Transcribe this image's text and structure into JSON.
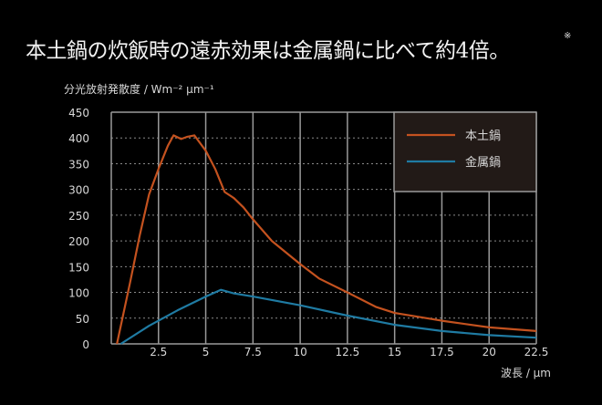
{
  "title": "本土鍋の炊飯時の遠赤効果は金属鍋に比べて約4倍。",
  "title_note": "※",
  "chart_data": {
    "type": "line",
    "title": "本土鍋の炊飯時の遠赤効果は金属鍋に比べて約4倍。",
    "ylabel": "分光放射発散度 / Wm⁻² μm⁻¹",
    "xlabel": "波長 / μm",
    "xlim": [
      0,
      22.5
    ],
    "ylim": [
      0,
      450
    ],
    "xticks": [
      2.5,
      5,
      7.5,
      10,
      12.5,
      15,
      17.5,
      20,
      22.5
    ],
    "xtick_labels": [
      "2.5",
      "5",
      "7.5",
      "10",
      "12.5",
      "15",
      "17.5",
      "20",
      "22.5"
    ],
    "yticks": [
      0,
      50,
      100,
      150,
      200,
      250,
      300,
      350,
      400,
      450
    ],
    "ytick_labels": [
      "0",
      "50",
      "100",
      "150",
      "200",
      "250",
      "300",
      "350",
      "400",
      "450"
    ],
    "grid": true,
    "legend": "top-right",
    "series": [
      {
        "name": "本土鍋",
        "color": "#c4521f",
        "x": [
          0.3,
          1,
          1.5,
          2,
          2.5,
          3,
          3.3,
          3.7,
          4,
          4.4,
          5,
          5.5,
          6,
          6.5,
          7,
          7.5,
          8.5,
          10,
          11,
          12.5,
          14,
          15,
          17.5,
          20,
          22.5
        ],
        "y": [
          0,
          120,
          210,
          290,
          340,
          385,
          405,
          398,
          402,
          405,
          375,
          340,
          295,
          283,
          265,
          242,
          200,
          155,
          127,
          100,
          72,
          60,
          45,
          32,
          25
        ]
      },
      {
        "name": "金属鍋",
        "color": "#1f7ba3",
        "x": [
          0.5,
          2,
          3.5,
          5,
          5.8,
          6.5,
          7.5,
          10,
          12.5,
          15,
          17.5,
          20,
          22.5
        ],
        "y": [
          0,
          35,
          65,
          92,
          105,
          98,
          92,
          75,
          55,
          37,
          25,
          17,
          12
        ]
      }
    ]
  }
}
